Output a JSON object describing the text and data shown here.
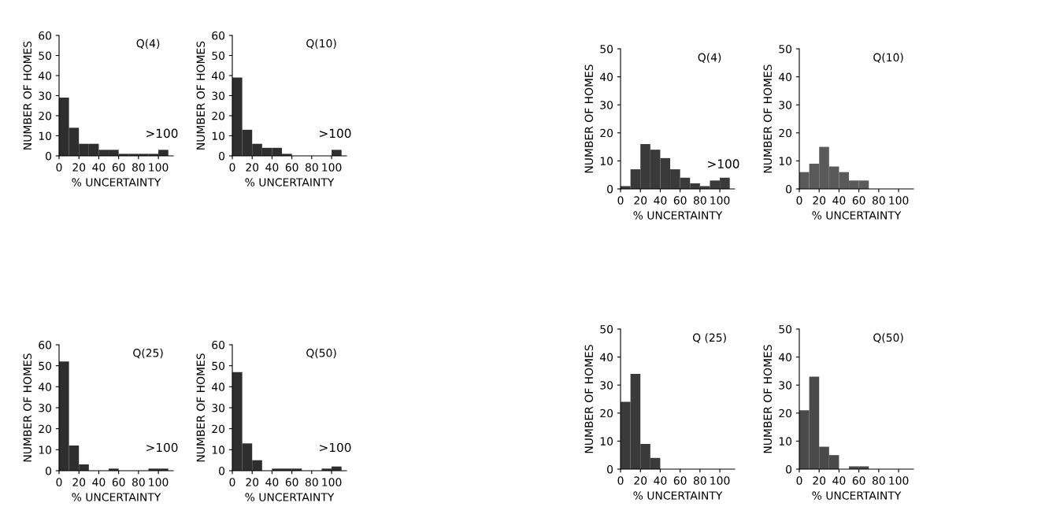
{
  "chart_data": [
    {
      "type": "histogram",
      "title": "Q(4)",
      "xlabel": "% UNCERTAINTY",
      "ylabel": "NUMBER OF HOMES",
      "bins": [
        0,
        10,
        20,
        30,
        40,
        50,
        60,
        70,
        80,
        90,
        100,
        110
      ],
      "values": [
        29,
        14,
        6,
        6,
        3,
        3,
        1,
        1,
        1,
        1,
        3
      ],
      "color": "#2e2e2e",
      "xlim": [
        0,
        115
      ],
      "xticks": [
        0,
        20,
        40,
        60,
        80,
        100
      ],
      "ylim": [
        0,
        60
      ],
      "yticks": [
        0,
        10,
        20,
        30,
        40,
        50,
        60
      ],
      "annotations": [
        ">100"
      ]
    },
    {
      "type": "histogram",
      "title": "Q(10)",
      "xlabel": "% UNCERTAINTY",
      "ylabel": "NUMBER OF HOMES",
      "bins": [
        0,
        10,
        20,
        30,
        40,
        50,
        60,
        70,
        80,
        90,
        100,
        110
      ],
      "values": [
        39,
        13,
        6,
        4,
        4,
        1,
        0,
        0,
        0,
        0,
        3
      ],
      "color": "#2e2e2e",
      "xlim": [
        0,
        115
      ],
      "xticks": [
        0,
        20,
        40,
        60,
        80,
        100
      ],
      "ylim": [
        0,
        60
      ],
      "yticks": [
        0,
        10,
        20,
        30,
        40,
        50,
        60
      ],
      "annotations": [
        ">100"
      ]
    },
    {
      "type": "histogram",
      "title": "Q(4)",
      "xlabel": "% UNCERTAINTY",
      "ylabel": "NUMBER OF HOMES",
      "bins": [
        0,
        10,
        20,
        30,
        40,
        50,
        60,
        70,
        80,
        90,
        100,
        110
      ],
      "values": [
        1,
        7,
        16,
        14,
        11,
        7,
        4,
        2,
        1,
        3,
        4
      ],
      "color": "#3a3a3a",
      "xlim": [
        0,
        115
      ],
      "xticks": [
        0,
        20,
        40,
        60,
        80,
        100
      ],
      "ylim": [
        0,
        50
      ],
      "yticks": [
        0,
        10,
        20,
        30,
        40,
        50
      ],
      "annotations": [
        ">100"
      ]
    },
    {
      "type": "histogram",
      "title": "Q(10)",
      "xlabel": "% UNCERTAINTY",
      "ylabel": "NUMBER OF HOMES",
      "bins": [
        0,
        10,
        20,
        30,
        40,
        50,
        60,
        70,
        80,
        90,
        100,
        110
      ],
      "values": [
        6,
        9,
        15,
        8,
        6,
        3,
        3,
        0,
        0,
        0,
        0
      ],
      "color": "#5a5a5a",
      "xlim": [
        0,
        115
      ],
      "xticks": [
        0,
        20,
        40,
        60,
        80,
        100
      ],
      "ylim": [
        0,
        50
      ],
      "yticks": [
        0,
        10,
        20,
        30,
        40,
        50
      ]
    },
    {
      "type": "histogram",
      "title": "Q(25)",
      "xlabel": "% UNCERTAINTY",
      "ylabel": "NUMBER OF HOMES",
      "bins": [
        0,
        10,
        20,
        30,
        40,
        50,
        60,
        70,
        80,
        90,
        100,
        110
      ],
      "values": [
        52,
        12,
        3,
        0,
        0,
        1,
        0,
        0,
        0,
        1,
        1
      ],
      "color": "#2e2e2e",
      "xlim": [
        0,
        115
      ],
      "xticks": [
        0,
        20,
        40,
        60,
        80,
        100
      ],
      "ylim": [
        0,
        60
      ],
      "yticks": [
        0,
        10,
        20,
        30,
        40,
        50,
        60
      ],
      "annotations": [
        ">100"
      ]
    },
    {
      "type": "histogram",
      "title": "Q(50)",
      "xlabel": "% UNCERTAINTY",
      "ylabel": "NUMBER OF HOMES",
      "bins": [
        0,
        10,
        20,
        30,
        40,
        50,
        60,
        70,
        80,
        90,
        100,
        110
      ],
      "values": [
        47,
        13,
        5,
        0,
        1,
        1,
        1,
        0,
        0,
        1,
        2
      ],
      "color": "#2e2e2e",
      "xlim": [
        0,
        115
      ],
      "xticks": [
        0,
        20,
        40,
        60,
        80,
        100
      ],
      "ylim": [
        0,
        60
      ],
      "yticks": [
        0,
        10,
        20,
        30,
        40,
        50,
        60
      ],
      "annotations": [
        ">100"
      ]
    },
    {
      "type": "histogram",
      "title": "Q (25)",
      "xlabel": "% UNCERTAINTY",
      "ylabel": "NUMBER OF HOMES",
      "bins": [
        0,
        10,
        20,
        30,
        40,
        50,
        60,
        70,
        80,
        90,
        100,
        110
      ],
      "values": [
        24,
        34,
        9,
        4,
        0,
        0,
        0,
        0,
        0,
        0,
        0
      ],
      "color": "#3a3a3a",
      "xlim": [
        0,
        115
      ],
      "xticks": [
        0,
        20,
        40,
        60,
        80,
        100
      ],
      "ylim": [
        0,
        50
      ],
      "yticks": [
        0,
        10,
        20,
        30,
        40,
        50
      ]
    },
    {
      "type": "histogram",
      "title": "Q(50)",
      "xlabel": "% UNCERTAINTY",
      "ylabel": "NUMBER OF HOMES",
      "bins": [
        0,
        10,
        20,
        30,
        40,
        50,
        60,
        70,
        80,
        90,
        100,
        110
      ],
      "values": [
        21,
        33,
        8,
        5,
        0,
        1,
        1,
        0,
        0,
        0,
        0
      ],
      "color": "#4a4a4a",
      "xlim": [
        0,
        115
      ],
      "xticks": [
        0,
        20,
        40,
        60,
        80,
        100
      ],
      "ylim": [
        0,
        50
      ],
      "yticks": [
        0,
        10,
        20,
        30,
        40,
        50
      ]
    }
  ]
}
